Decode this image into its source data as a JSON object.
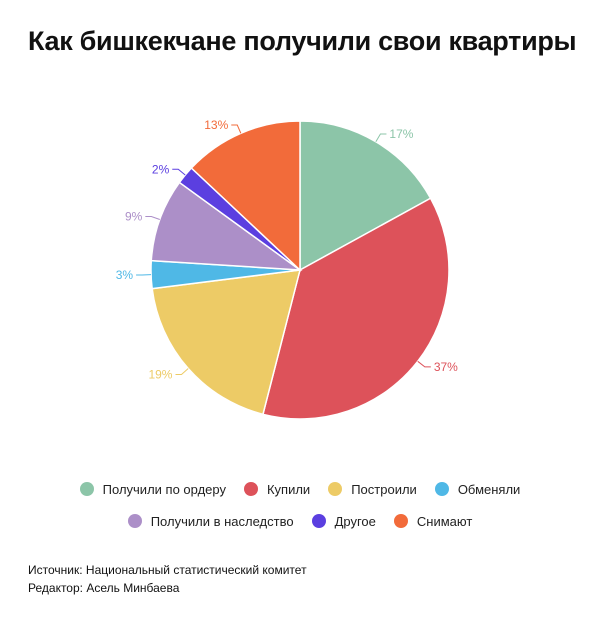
{
  "chart_data": {
    "type": "pie",
    "title": "Как бишкекчане получили свои квартиры",
    "slices": [
      {
        "name": "Получили по ордеру",
        "value": 17,
        "label": "17%",
        "color": "#8CC5A8"
      },
      {
        "name": "Купили",
        "value": 37,
        "label": "37%",
        "color": "#DD525A"
      },
      {
        "name": "Построили",
        "value": 19,
        "label": "19%",
        "color": "#EDCB66"
      },
      {
        "name": "Обменяли",
        "value": 3,
        "label": "3%",
        "color": "#4FB8E6"
      },
      {
        "name": "Получили в наследство",
        "value": 9,
        "label": "9%",
        "color": "#AC8FC8"
      },
      {
        "name": "Другое",
        "value": 2,
        "label": "2%",
        "color": "#5B3FE0"
      },
      {
        "name": "Снимают",
        "value": 13,
        "label": "13%",
        "color": "#F26B3A"
      }
    ],
    "legend_position": "bottom"
  },
  "footer": {
    "source": "Источник: Национальный статистический комитет",
    "editor": "Редактор: Асель Минбаева"
  }
}
